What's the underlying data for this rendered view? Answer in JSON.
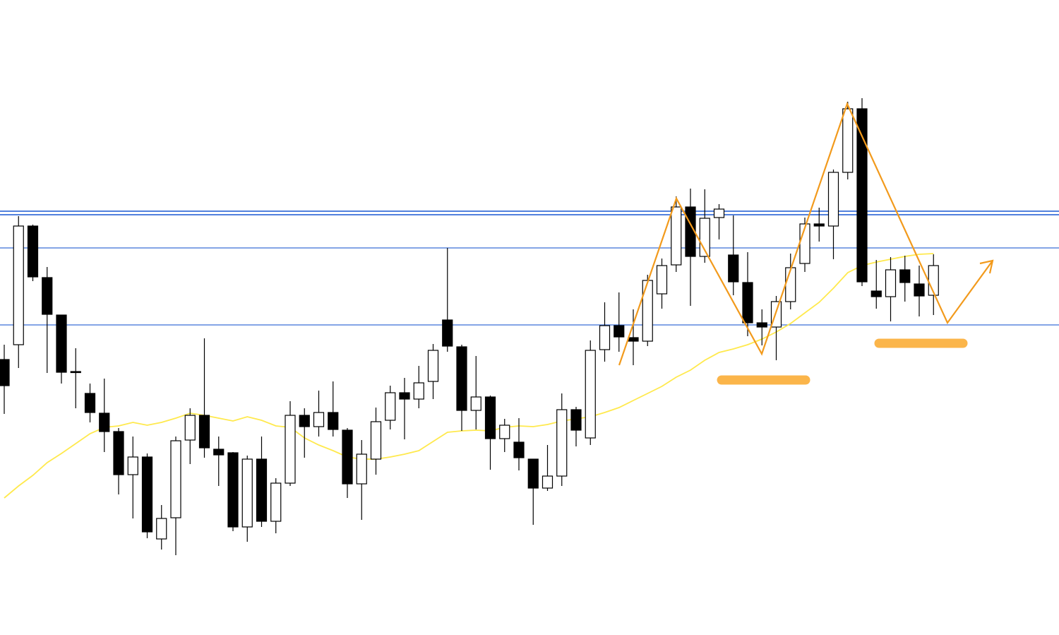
{
  "chart_data": {
    "type": "candlestick",
    "open": [
      491,
      512,
      680,
      607,
      554,
      474,
      443,
      415,
      389,
      328,
      353,
      237,
      267,
      377,
      412,
      364,
      359,
      254,
      350,
      262,
      316,
      412,
      396,
      416,
      391,
      315,
      350,
      405,
      444,
      435,
      460,
      547,
      509,
      419,
      438,
      379,
      374,
      350,
      309,
      326,
      420,
      380,
      505,
      539,
      522,
      517,
      584,
      625,
      707,
      637,
      692,
      639,
      600,
      543,
      537,
      573,
      627,
      683,
      680,
      756,
      846,
      588,
      580,
      618,
      598,
      582
    ],
    "high": [
      512,
      694,
      682,
      622,
      554,
      507,
      457,
      464,
      394,
      382,
      358,
      285,
      382,
      422,
      521,
      382,
      360,
      355,
      382,
      323,
      432,
      422,
      447,
      460,
      394,
      377,
      423,
      454,
      465,
      482,
      513,
      649,
      512,
      496,
      440,
      407,
      408,
      350,
      370,
      443,
      424,
      518,
      572,
      586,
      562,
      611,
      634,
      722,
      733,
      732,
      711,
      695,
      643,
      562,
      581,
      641,
      692,
      706,
      760,
      856,
      861,
      632,
      636,
      638,
      624,
      640
    ],
    "low": [
      414,
      479,
      602,
      472,
      457,
      422,
      402,
      360,
      300,
      266,
      238,
      222,
      214,
      343,
      352,
      312,
      248,
      233,
      254,
      245,
      312,
      352,
      382,
      382,
      295,
      264,
      328,
      392,
      378,
      422,
      435,
      502,
      390,
      392,
      335,
      360,
      334,
      257,
      305,
      312,
      368,
      370,
      488,
      502,
      483,
      510,
      563,
      615,
      567,
      628,
      661,
      582,
      524,
      511,
      490,
      562,
      615,
      658,
      633,
      746,
      595,
      563,
      545,
      573,
      552,
      554
    ],
    "close": [
      454,
      680,
      608,
      555,
      473,
      473,
      416,
      389,
      328,
      353,
      247,
      266,
      376,
      412,
      366,
      356,
      254,
      350,
      262,
      316,
      412,
      396,
      416,
      392,
      315,
      357,
      403,
      444,
      435,
      458,
      504,
      510,
      419,
      438,
      379,
      398,
      352,
      309,
      326,
      420,
      391,
      504,
      539,
      523,
      517,
      603,
      624,
      707,
      637,
      691,
      704,
      601,
      543,
      537,
      573,
      621,
      683,
      680,
      756,
      846,
      601,
      580,
      618,
      600,
      581,
      624
    ],
    "up_color": "#ffffff",
    "down_color": "#000000",
    "ma": {
      "color": "#ffe94d",
      "values": [
        295,
        312,
        327,
        345,
        358,
        372,
        386,
        395,
        397,
        402,
        398,
        402,
        408,
        415,
        412,
        408,
        404,
        410,
        405,
        397,
        395,
        380,
        370,
        362,
        353,
        350,
        350,
        353,
        357,
        362,
        375,
        388,
        390,
        391,
        390,
        395,
        397,
        396,
        399,
        404,
        407,
        410,
        416,
        423,
        433,
        443,
        453,
        466,
        476,
        490,
        501,
        506,
        512,
        520,
        530,
        542,
        557,
        572,
        592,
        614,
        624,
        629,
        633,
        637,
        640,
        641
      ]
    },
    "hlines": {
      "color": "#3a6fd8",
      "values": [
        701,
        696,
        649,
        540
      ]
    },
    "ylim": [
      101,
      1000
    ],
    "grid": false
  }
}
